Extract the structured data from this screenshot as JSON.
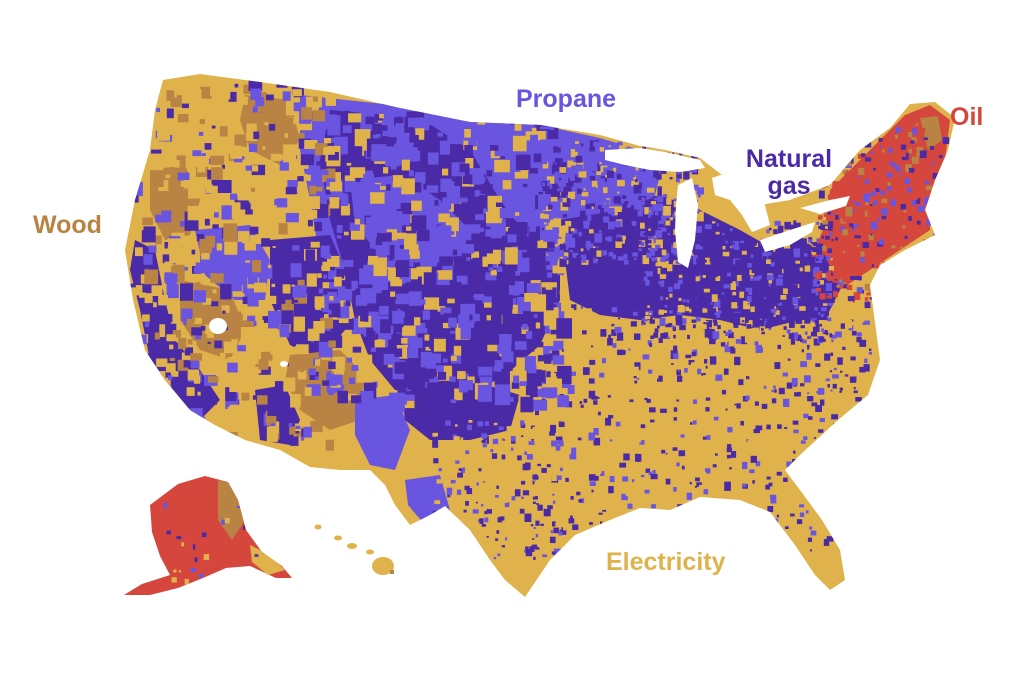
{
  "map": {
    "labels": {
      "propane": "Propane",
      "natural_gas_line1": "Natural",
      "natural_gas_line2": "gas",
      "oil": "Oil",
      "wood": "Wood",
      "electricity": "Electricity"
    },
    "colors": {
      "electricity": "#e0b24b",
      "propane": "#6a55e0",
      "natural_gas": "#4a2aa6",
      "oil": "#d5473d",
      "wood": "#b98344",
      "background": "#ffffff"
    }
  }
}
